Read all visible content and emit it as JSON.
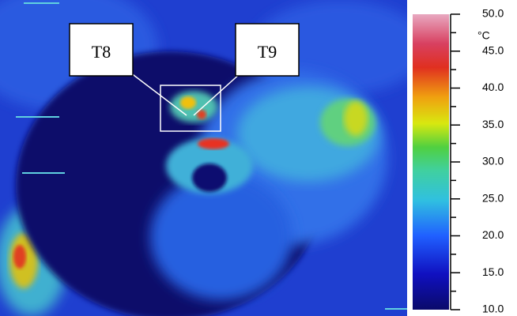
{
  "annotations": [
    {
      "label": "T8"
    },
    {
      "label": "T9"
    }
  ],
  "colorbar": {
    "unit": "°C",
    "range": [
      10,
      50
    ],
    "ticks": [
      {
        "value": 50,
        "label": "50.0"
      },
      {
        "value": 45,
        "label": "45.0"
      },
      {
        "value": 40,
        "label": "40.0"
      },
      {
        "value": 35,
        "label": "35.0"
      },
      {
        "value": 30,
        "label": "30.0"
      },
      {
        "value": 25,
        "label": "25.0"
      },
      {
        "value": 20,
        "label": "20.0"
      },
      {
        "value": 15,
        "label": "15.0"
      },
      {
        "value": 10,
        "label": "10.0"
      }
    ],
    "minor_ticks": [
      47.5,
      42.5,
      37.5,
      32.5,
      27.5,
      22.5,
      17.5,
      12.5
    ]
  }
}
